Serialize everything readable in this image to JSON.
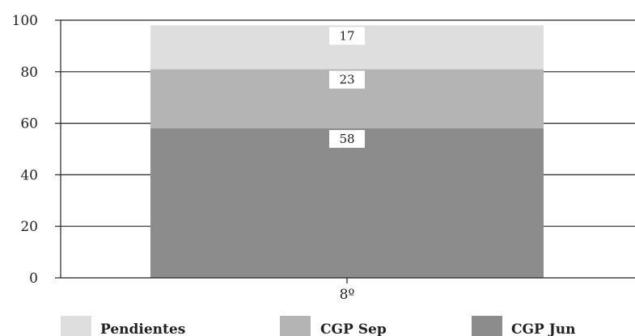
{
  "chart_data": {
    "type": "bar",
    "stacked": true,
    "categories": [
      "8º"
    ],
    "series": [
      {
        "name": "CGP Jun",
        "values": [
          58
        ],
        "color": "#8c8c8c"
      },
      {
        "name": "CGP Sep",
        "values": [
          23
        ],
        "color": "#b4b4b4"
      },
      {
        "name": "Pendientes",
        "values": [
          17
        ],
        "color": "#dedede"
      }
    ],
    "legend_order": [
      "Pendientes",
      "CGP Sep",
      "CGP Jun"
    ],
    "ylim": [
      0,
      100
    ],
    "yticks": [
      0,
      20,
      40,
      60,
      80,
      100
    ],
    "grid": true,
    "legend_position": "bottom",
    "title": "",
    "xlabel": "",
    "ylabel": ""
  }
}
